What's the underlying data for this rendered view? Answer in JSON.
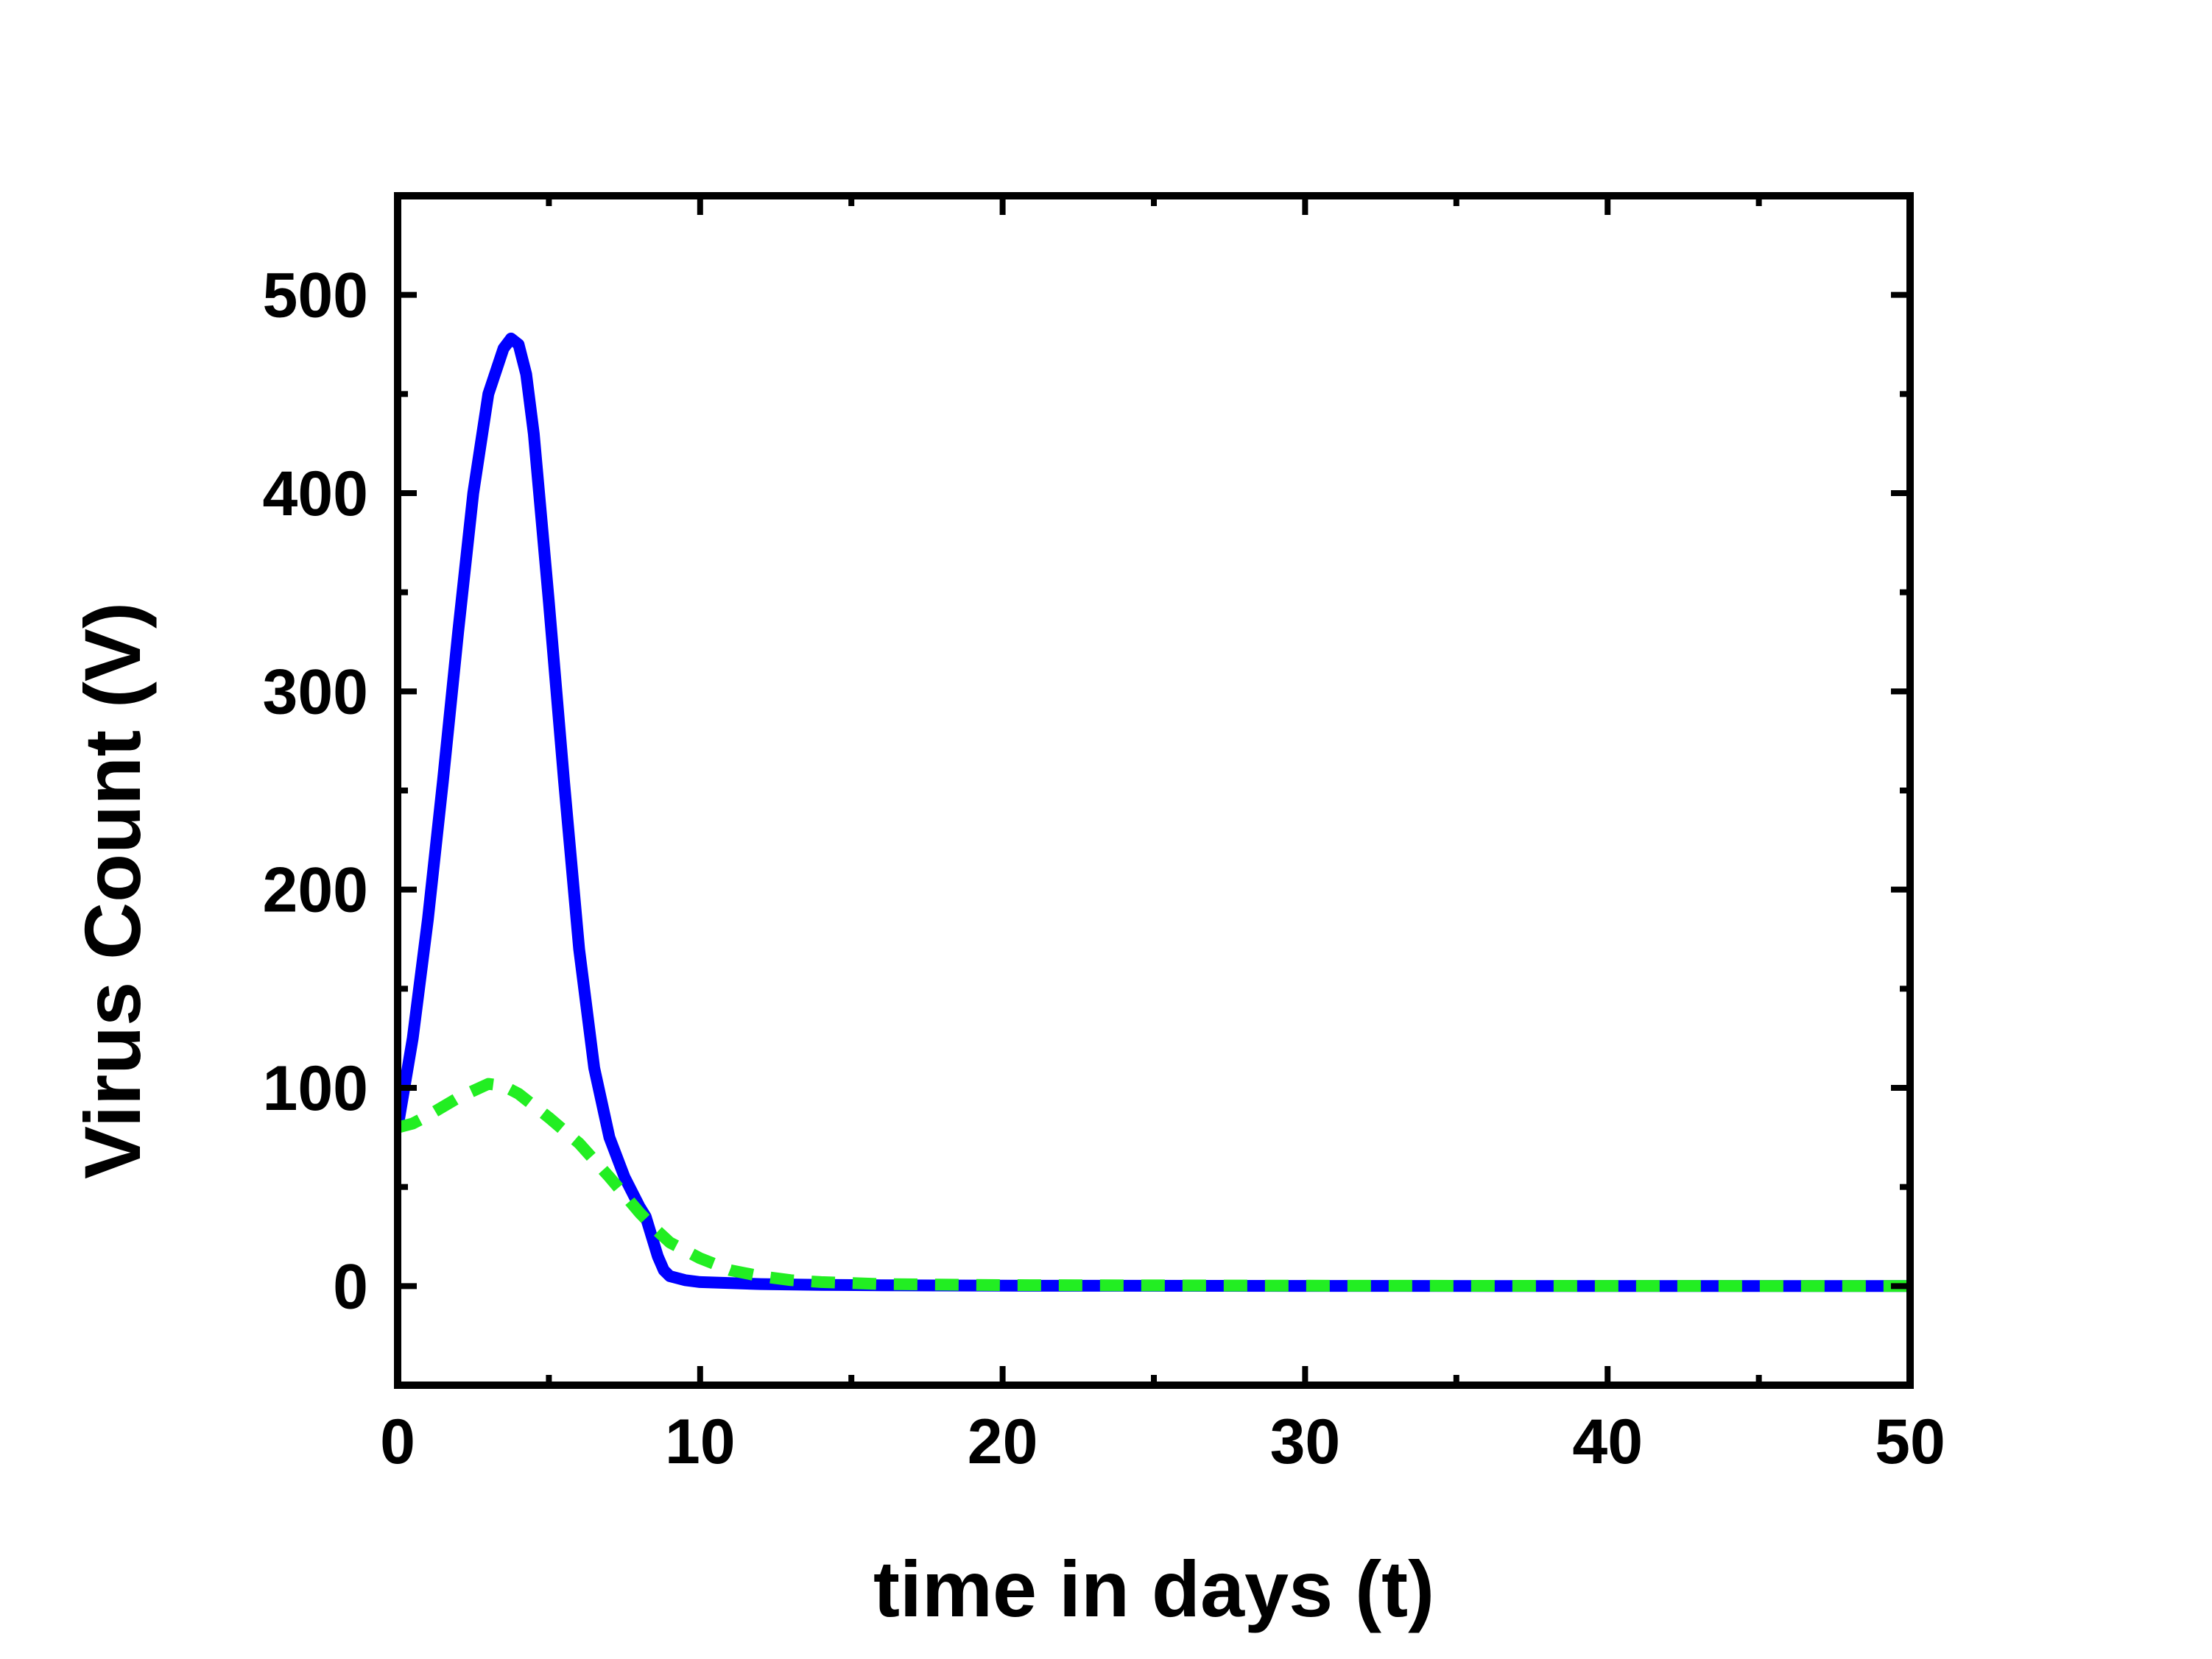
{
  "chart_data": {
    "type": "line",
    "title": "",
    "xlabel": "time in days (t)",
    "ylabel": "Virus Count (V)",
    "xlim": [
      0,
      50
    ],
    "ylim": [
      -50,
      550
    ],
    "x_ticks": [
      0,
      10,
      20,
      30,
      40,
      50
    ],
    "y_ticks": [
      0,
      100,
      200,
      300,
      400,
      500
    ],
    "x_tick_labels": [
      "0",
      "10",
      "20",
      "30",
      "40",
      "50"
    ],
    "y_tick_labels": [
      "0",
      "100",
      "200",
      "300",
      "400",
      "500"
    ],
    "grid": false,
    "legend": "none",
    "series": [
      {
        "color": "#0000ff",
        "line_style": "solid",
        "x": [
          0,
          0.5,
          1,
          1.5,
          2,
          2.5,
          3,
          3.5,
          3.75,
          4,
          4.25,
          4.5,
          5,
          5.5,
          6,
          6.5,
          7,
          7.5,
          8,
          8.2,
          8.4,
          8.6,
          8.8,
          9,
          9.5,
          10,
          11,
          12,
          14,
          16,
          20,
          30,
          40,
          50
        ],
        "y": [
          80,
          125,
          185,
          255,
          330,
          400,
          450,
          473,
          478,
          475,
          460,
          430,
          345,
          255,
          170,
          110,
          75,
          55,
          40,
          35,
          25,
          15,
          8,
          5,
          3,
          2,
          1.5,
          1,
          0.6,
          0.4,
          0.2,
          0.1,
          0,
          0
        ]
      },
      {
        "color": "#22ee22",
        "line_style": "dashed",
        "x": [
          0,
          0.5,
          1,
          2,
          3,
          3.5,
          4,
          5,
          6,
          7,
          8,
          8.5,
          9,
          10,
          11,
          12,
          13,
          14,
          16,
          20,
          30,
          40,
          50
        ],
        "y": [
          80,
          82,
          86,
          95,
          102,
          101,
          97,
          85,
          72,
          55,
          37,
          29,
          22,
          14,
          8,
          5,
          3,
          2,
          1,
          0.5,
          0.2,
          0.1,
          0
        ]
      }
    ]
  }
}
